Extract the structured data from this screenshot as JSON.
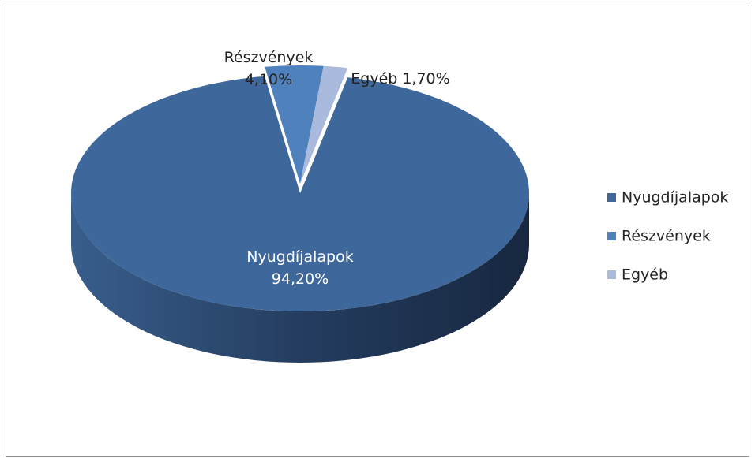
{
  "chart_data": {
    "type": "pie",
    "categories": [
      "Nyugdíjalapok",
      "Részvények",
      "Egyéb"
    ],
    "values": [
      94.2,
      4.1,
      1.7
    ],
    "value_labels": [
      "94,20%",
      "4,10%",
      "1,70%"
    ],
    "colors": [
      "#3e679b",
      "#4f81bd",
      "#a9badd"
    ],
    "legend": "right"
  }
}
